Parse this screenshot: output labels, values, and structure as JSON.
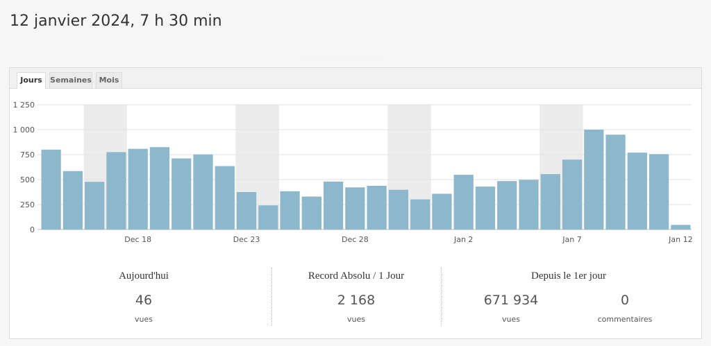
{
  "header": {
    "title": "12 janvier 2024, 7 h 30 min"
  },
  "tabs": [
    {
      "label": "Jours",
      "active": true
    },
    {
      "label": "Semaines",
      "active": false
    },
    {
      "label": "Mois",
      "active": false
    }
  ],
  "chart_data": {
    "type": "bar",
    "ylim": [
      0,
      1250
    ],
    "yticks": [
      0,
      250,
      500,
      750,
      1000,
      1250
    ],
    "ytick_labels": [
      "0",
      "250",
      "500",
      "750",
      "1 000",
      "1 250"
    ],
    "values": [
      800,
      585,
      478,
      775,
      808,
      825,
      712,
      752,
      635,
      375,
      242,
      383,
      330,
      480,
      422,
      438,
      398,
      302,
      358,
      548,
      430,
      485,
      498,
      555,
      700,
      1000,
      950,
      770,
      755,
      46
    ],
    "xtick_labels": [
      {
        "index": 4,
        "label": "Dec 18"
      },
      {
        "index": 9,
        "label": "Dec 23"
      },
      {
        "index": 14,
        "label": "Dec 28"
      },
      {
        "index": 19,
        "label": "Jan 2"
      },
      {
        "index": 24,
        "label": "Jan 7"
      },
      {
        "index": 29,
        "label": "Jan 12"
      }
    ],
    "weekend_bands": [
      [
        2,
        3
      ],
      [
        9,
        10
      ],
      [
        16,
        17
      ],
      [
        23,
        24
      ]
    ],
    "grid": true,
    "bar_color": "#8db8cc",
    "band_color": "#ececec"
  },
  "stats": {
    "today": {
      "title": "Aujourd'hui",
      "value": "46",
      "label": "vues"
    },
    "record": {
      "title": "Record Absolu / 1 Jour",
      "value": "2 168",
      "label": "vues"
    },
    "since": {
      "title": "Depuis le 1er jour",
      "views_value": "671 934",
      "views_label": "vues",
      "comments_value": "0",
      "comments_label": "commentaires"
    }
  }
}
